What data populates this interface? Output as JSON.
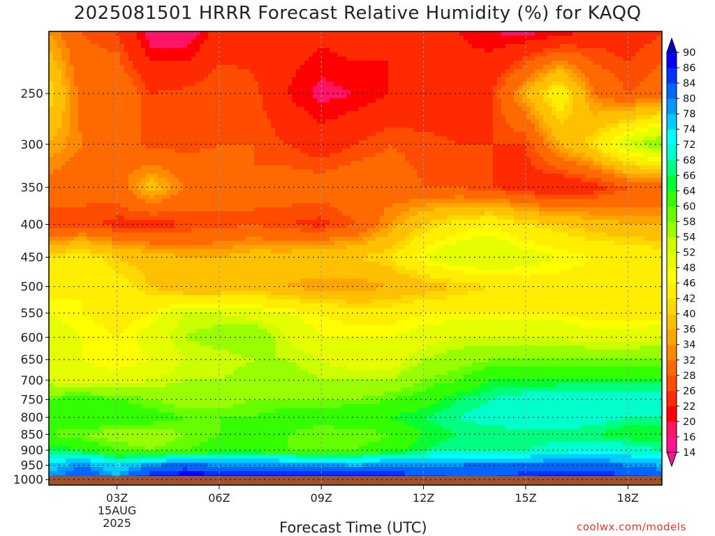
{
  "title": "2025081501 HRRR Forecast Relative Humidity (%) for KAQQ",
  "credit": "coolwx.com/models",
  "chart_data": {
    "type": "heatmap",
    "title": "2025081501 HRRR Forecast Relative Humidity (%) for KAQQ",
    "xlabel": "Forecast Time (UTC)",
    "ylabel": "",
    "x_ticks": [
      "03Z",
      "06Z",
      "09Z",
      "12Z",
      "15Z",
      "18Z"
    ],
    "x_tick_hours": [
      3,
      6,
      9,
      12,
      15,
      18
    ],
    "x_date_label": [
      "15AUG",
      "2025"
    ],
    "xlim_hours": [
      1,
      19
    ],
    "y_ticks": [
      250,
      300,
      350,
      400,
      450,
      500,
      550,
      600,
      650,
      700,
      750,
      800,
      850,
      900,
      950,
      1000
    ],
    "ylim_hpa": [
      1020,
      200
    ],
    "y_scale": "log",
    "grid": true,
    "colorbar": {
      "placement": "right",
      "levels": [
        14,
        16,
        20,
        22,
        26,
        28,
        32,
        34,
        36,
        40,
        42,
        46,
        48,
        52,
        54,
        58,
        60,
        64,
        66,
        68,
        72,
        74,
        78,
        80,
        84,
        86,
        90
      ],
      "colors": [
        "#ff1493",
        "#ff1466",
        "#ff0000",
        "#ff2a00",
        "#ff4d00",
        "#ff6a00",
        "#ff8a00",
        "#ffa500",
        "#ffc000",
        "#ffd800",
        "#ffee00",
        "#ffff00",
        "#e6ff00",
        "#ccff00",
        "#99ff00",
        "#66ff00",
        "#33ff00",
        "#00ff33",
        "#00ff80",
        "#00ffcc",
        "#00ffff",
        "#00ccff",
        "#0099ff",
        "#0066ff",
        "#0033ff",
        "#0000ff"
      ],
      "extend": "both"
    },
    "times": [
      1,
      2,
      3,
      4,
      5,
      6,
      7,
      8,
      9,
      10,
      11,
      12,
      13,
      14,
      15,
      16,
      17,
      18,
      19
    ],
    "pressures": [
      200,
      250,
      300,
      350,
      400,
      450,
      500,
      550,
      600,
      650,
      700,
      750,
      800,
      850,
      900,
      950,
      1000,
      1020
    ],
    "values": [
      [
        34,
        28,
        26,
        18,
        17,
        24,
        24,
        24,
        23,
        24,
        22,
        22,
        22,
        20,
        19,
        20,
        24,
        24,
        26
      ],
      [
        42,
        30,
        32,
        26,
        27,
        28,
        27,
        22,
        19,
        20,
        22,
        23,
        24,
        26,
        36,
        46,
        32,
        28,
        30
      ],
      [
        36,
        32,
        30,
        27,
        27,
        28,
        28,
        26,
        24,
        26,
        28,
        27,
        26,
        26,
        26,
        36,
        42,
        52,
        58
      ],
      [
        30,
        29,
        30,
        38,
        32,
        30,
        28,
        30,
        30,
        31,
        30,
        28,
        28,
        26,
        24,
        22,
        24,
        28,
        28
      ],
      [
        26,
        27,
        25,
        24,
        26,
        27,
        28,
        26,
        25,
        28,
        34,
        40,
        44,
        46,
        42,
        40,
        38,
        36,
        36
      ],
      [
        42,
        44,
        40,
        38,
        36,
        36,
        38,
        38,
        40,
        40,
        42,
        48,
        52,
        52,
        50,
        48,
        46,
        46,
        44
      ],
      [
        44,
        46,
        44,
        40,
        36,
        36,
        38,
        36,
        34,
        34,
        36,
        38,
        40,
        42,
        44,
        44,
        44,
        46,
        46
      ],
      [
        48,
        46,
        44,
        46,
        52,
        52,
        50,
        48,
        46,
        44,
        44,
        46,
        46,
        46,
        46,
        46,
        44,
        44,
        44
      ],
      [
        50,
        48,
        46,
        50,
        54,
        56,
        58,
        52,
        48,
        48,
        48,
        50,
        52,
        52,
        52,
        52,
        50,
        50,
        52
      ],
      [
        48,
        48,
        46,
        48,
        52,
        52,
        54,
        54,
        52,
        50,
        50,
        54,
        56,
        58,
        58,
        58,
        58,
        58,
        58
      ],
      [
        52,
        50,
        50,
        52,
        54,
        54,
        56,
        56,
        54,
        54,
        54,
        58,
        60,
        64,
        64,
        64,
        64,
        64,
        64
      ],
      [
        60,
        62,
        60,
        58,
        56,
        56,
        58,
        58,
        58,
        58,
        60,
        62,
        66,
        68,
        70,
        72,
        72,
        72,
        72
      ],
      [
        62,
        64,
        64,
        62,
        60,
        60,
        60,
        62,
        62,
        64,
        64,
        66,
        68,
        70,
        72,
        72,
        70,
        68,
        68
      ],
      [
        60,
        58,
        56,
        56,
        58,
        60,
        60,
        60,
        58,
        58,
        60,
        64,
        66,
        66,
        66,
        66,
        66,
        64,
        64
      ],
      [
        66,
        64,
        60,
        58,
        60,
        62,
        62,
        60,
        58,
        60,
        62,
        66,
        68,
        68,
        68,
        70,
        72,
        70,
        68
      ],
      [
        76,
        80,
        74,
        80,
        82,
        80,
        80,
        80,
        80,
        78,
        80,
        80,
        80,
        82,
        82,
        82,
        82,
        80,
        78
      ],
      [
        80,
        84,
        80,
        88,
        90,
        90,
        88,
        88,
        90,
        90,
        88,
        86,
        84,
        84,
        86,
        88,
        88,
        86,
        84
      ],
      [
        80,
        84,
        80,
        88,
        90,
        90,
        88,
        88,
        90,
        90,
        88,
        86,
        84,
        84,
        86,
        88,
        88,
        86,
        84
      ]
    ]
  }
}
